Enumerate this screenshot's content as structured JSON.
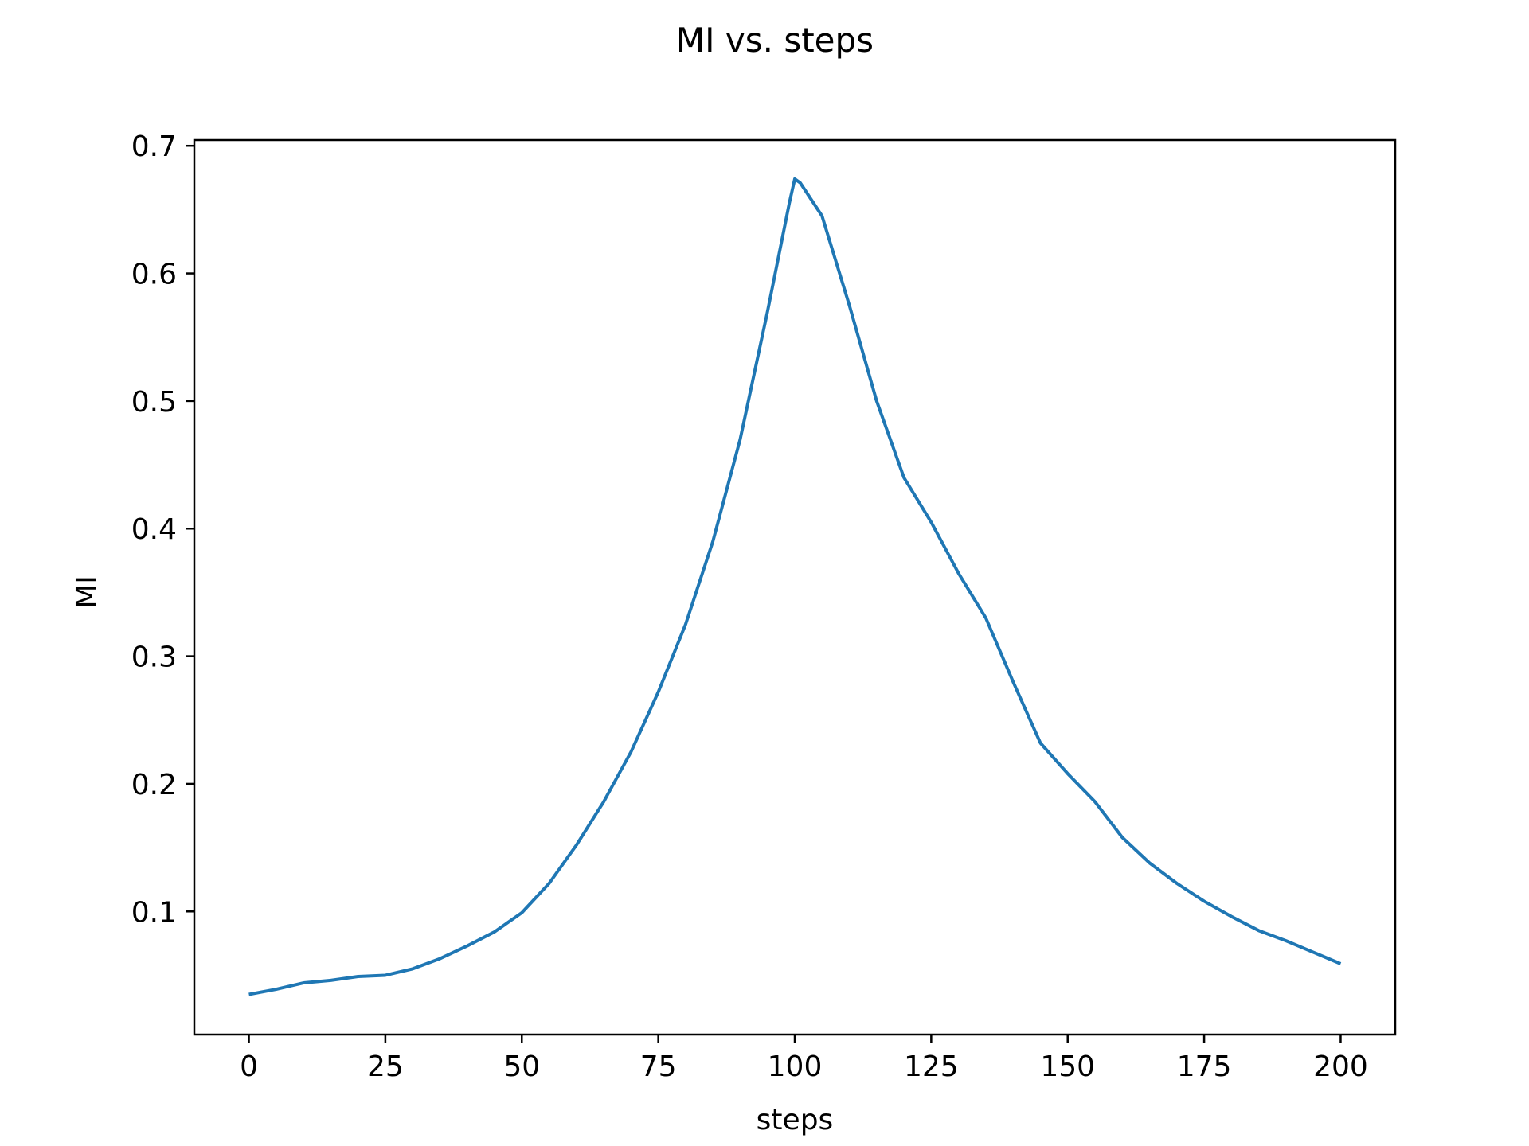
{
  "chart_data": {
    "type": "line",
    "title": "MI vs. steps",
    "xlabel": "steps",
    "ylabel": "MI",
    "xlim": [
      -10,
      210
    ],
    "ylim": [
      0.0035,
      0.7045
    ],
    "xticks": [
      0,
      25,
      50,
      75,
      100,
      125,
      150,
      175,
      200
    ],
    "xtick_labels": [
      "0",
      "25",
      "50",
      "75",
      "100",
      "125",
      "150",
      "175",
      "200"
    ],
    "yticks": [
      0.1,
      0.2,
      0.3,
      0.4,
      0.5,
      0.6,
      0.7
    ],
    "ytick_labels": [
      "0.1",
      "0.2",
      "0.3",
      "0.4",
      "0.5",
      "0.6",
      "0.7"
    ],
    "grid": false,
    "legend": "none",
    "line_color": "#1f77b4",
    "series": [
      {
        "x": [
          0,
          5,
          10,
          15,
          20,
          25,
          30,
          35,
          40,
          45,
          50,
          55,
          60,
          65,
          70,
          75,
          80,
          85,
          90,
          95,
          99,
          100,
          101,
          105,
          110,
          115,
          120,
          125,
          130,
          135,
          140,
          145,
          150,
          155,
          160,
          165,
          170,
          175,
          180,
          185,
          190,
          195,
          200
        ],
        "y": [
          0.035,
          0.039,
          0.044,
          0.046,
          0.049,
          0.05,
          0.055,
          0.063,
          0.073,
          0.084,
          0.099,
          0.122,
          0.152,
          0.186,
          0.225,
          0.272,
          0.325,
          0.39,
          0.47,
          0.57,
          0.655,
          0.674,
          0.671,
          0.645,
          0.575,
          0.5,
          0.44,
          0.405,
          0.365,
          0.33,
          0.28,
          0.232,
          0.208,
          0.186,
          0.158,
          0.138,
          0.122,
          0.108,
          0.096,
          0.085,
          0.077,
          0.068,
          0.059
        ]
      }
    ]
  }
}
